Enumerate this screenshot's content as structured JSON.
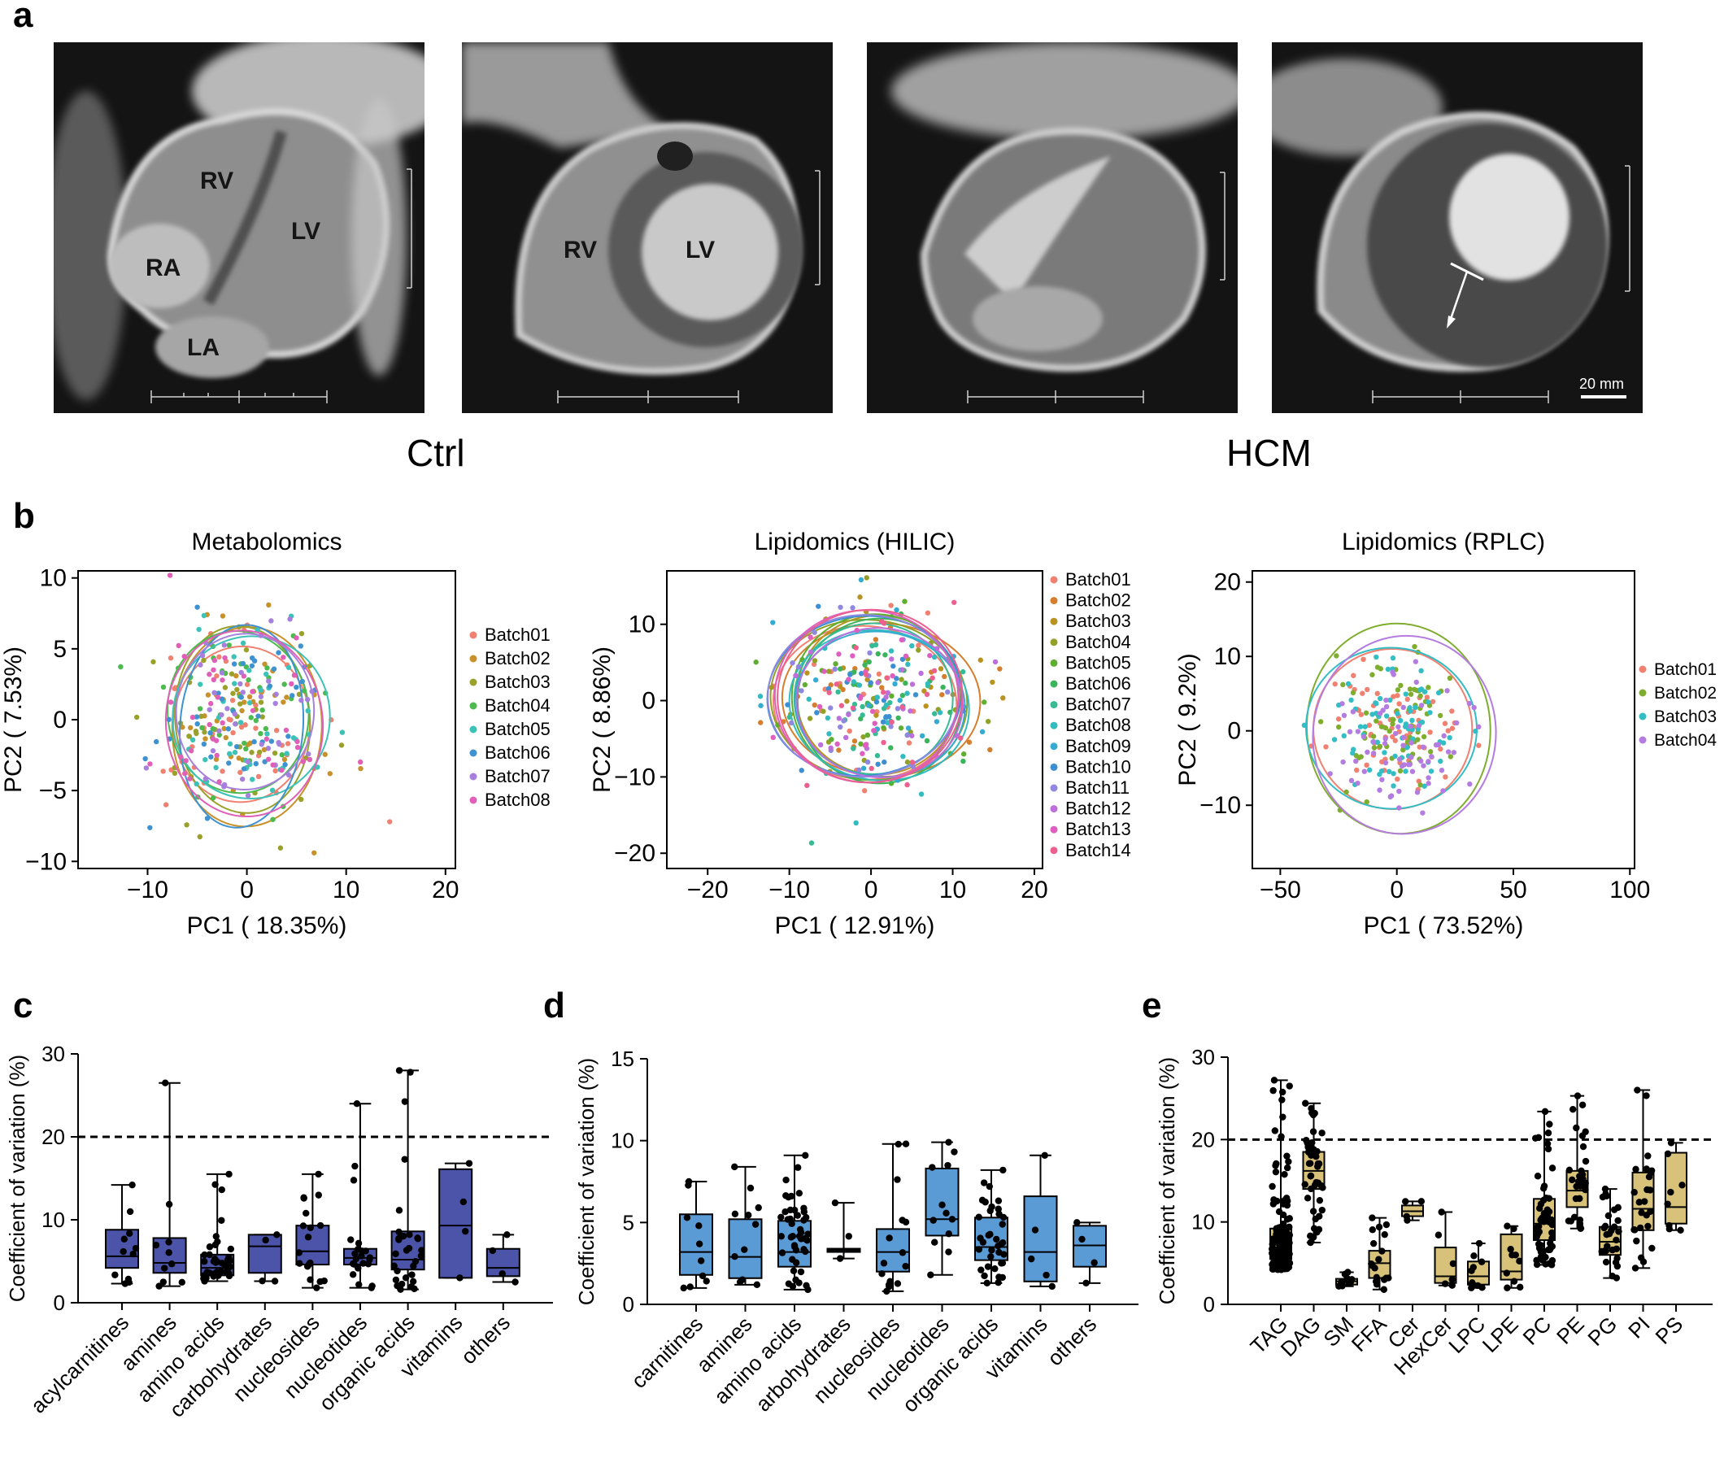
{
  "panels": {
    "a": "a",
    "b": "b",
    "c": "c",
    "d": "d",
    "e": "e"
  },
  "mri": {
    "groups": [
      "Ctrl",
      "HCM"
    ],
    "labels": {
      "rv": "RV",
      "lv": "LV",
      "ra": "RA",
      "la": "LA"
    },
    "scale_label": "20 mm"
  },
  "chart_data": [
    {
      "type": "scatter",
      "title": "Metabolomics",
      "xlabel": "PC1 ( 18.35%)",
      "ylabel": "PC2 ( 7.53%)",
      "xlim": [
        -17,
        21
      ],
      "ylim": [
        -10.5,
        10.5
      ],
      "xticks": [
        -10,
        0,
        10,
        20
      ],
      "yticks": [
        -10,
        -5,
        0,
        5,
        10
      ],
      "legend_position": "right",
      "series": [
        {
          "name": "Batch01",
          "color": "#f08070"
        },
        {
          "name": "Batch02",
          "color": "#c9912c"
        },
        {
          "name": "Batch03",
          "color": "#9aa12a"
        },
        {
          "name": "Batch04",
          "color": "#4dba4f"
        },
        {
          "name": "Batch05",
          "color": "#3dc2b8"
        },
        {
          "name": "Batch06",
          "color": "#3f92d0"
        },
        {
          "name": "Batch07",
          "color": "#a680dc"
        },
        {
          "name": "Batch08",
          "color": "#e060b8"
        }
      ]
    },
    {
      "type": "scatter",
      "title": "Lipidomics (HILIC)",
      "xlabel": "PC1 ( 12.91%)",
      "ylabel": "PC2 ( 8.86%)",
      "xlim": [
        -25,
        21
      ],
      "ylim": [
        -22,
        17
      ],
      "xticks": [
        -20,
        -10,
        0,
        10,
        20
      ],
      "yticks": [
        -20,
        -10,
        0,
        10
      ],
      "legend_position": "right",
      "series": [
        {
          "name": "Batch01",
          "color": "#f08070"
        },
        {
          "name": "Batch02",
          "color": "#d57f2e"
        },
        {
          "name": "Batch03",
          "color": "#b9921f"
        },
        {
          "name": "Batch04",
          "color": "#92a126"
        },
        {
          "name": "Batch05",
          "color": "#5fae2f"
        },
        {
          "name": "Batch06",
          "color": "#3bb55c"
        },
        {
          "name": "Batch07",
          "color": "#37bb95"
        },
        {
          "name": "Batch08",
          "color": "#33bcc0"
        },
        {
          "name": "Batch09",
          "color": "#35abd2"
        },
        {
          "name": "Batch10",
          "color": "#3b8fd2"
        },
        {
          "name": "Batch11",
          "color": "#8f87e0"
        },
        {
          "name": "Batch12",
          "color": "#bd6fdc"
        },
        {
          "name": "Batch13",
          "color": "#df5fc0"
        },
        {
          "name": "Batch14",
          "color": "#ec5f8e"
        }
      ]
    },
    {
      "type": "scatter",
      "title": "Lipidomics (RPLC)",
      "xlabel": "PC1 ( 73.52%)",
      "ylabel": "PC2 ( 9.2%)",
      "xlim": [
        -62,
        102
      ],
      "ylim": [
        -18.5,
        21.5
      ],
      "xticks": [
        -50,
        0,
        50,
        100
      ],
      "yticks": [
        -10,
        0,
        10,
        20
      ],
      "legend_position": "right",
      "series": [
        {
          "name": "Batch01",
          "color": "#f08070"
        },
        {
          "name": "Batch02",
          "color": "#7fae2e"
        },
        {
          "name": "Batch03",
          "color": "#33bdc4"
        },
        {
          "name": "Batch04",
          "color": "#b47ce0"
        }
      ]
    },
    {
      "type": "box",
      "ylabel": "Coefficient of variation (%)",
      "ylim": [
        0,
        30
      ],
      "yticks": [
        0,
        10,
        20,
        30
      ],
      "reference_line": 20,
      "color": "#4b54a8",
      "categories": [
        "acylcarnitines",
        "amines",
        "amino acids",
        "carbohydrates",
        "nucleosides",
        "nucleotides",
        "organic acids",
        "vitamins",
        "others"
      ],
      "boxes": [
        {
          "min": 2.3,
          "q1": 4.2,
          "median": 5.6,
          "q3": 8.8,
          "max": 14.2,
          "n": 11
        },
        {
          "min": 2.0,
          "q1": 3.6,
          "median": 4.8,
          "q3": 7.8,
          "max": 26.5,
          "n": 10
        },
        {
          "min": 2.6,
          "q1": 3.3,
          "median": 4.2,
          "q3": 5.8,
          "max": 15.5,
          "n": 40
        },
        {
          "min": 2.6,
          "q1": 3.6,
          "median": 6.8,
          "q3": 8.2,
          "max": 8.2,
          "n": 4
        },
        {
          "min": 1.8,
          "q1": 4.6,
          "median": 6.2,
          "q3": 9.3,
          "max": 15.5,
          "n": 18
        },
        {
          "min": 1.8,
          "q1": 4.6,
          "median": 5.4,
          "q3": 6.5,
          "max": 24.0,
          "n": 22
        },
        {
          "min": 1.6,
          "q1": 4.0,
          "median": 5.2,
          "q3": 8.6,
          "max": 28.0,
          "n": 30
        },
        {
          "min": 3.0,
          "q1": 3.0,
          "median": 9.3,
          "q3": 16.1,
          "max": 16.8,
          "n": 4
        },
        {
          "min": 2.5,
          "q1": 3.2,
          "median": 4.2,
          "q3": 6.5,
          "max": 8.2,
          "n": 4
        }
      ]
    },
    {
      "type": "box",
      "ylabel": "Coefficient of variation (%)",
      "ylim": [
        0,
        15
      ],
      "yticks": [
        0,
        5,
        10,
        15
      ],
      "color": "#5b9bd5",
      "categories": [
        "carnitines",
        "amines",
        "amino acids",
        "arbohydrates",
        "nucleosides",
        "nucleotides",
        "organic acids",
        "vitamins",
        "others"
      ],
      "boxes": [
        {
          "min": 1.0,
          "q1": 1.8,
          "median": 3.2,
          "q3": 5.5,
          "max": 7.5,
          "n": 10
        },
        {
          "min": 1.2,
          "q1": 1.6,
          "median": 2.9,
          "q3": 5.2,
          "max": 8.4,
          "n": 11
        },
        {
          "min": 0.9,
          "q1": 2.3,
          "median": 3.2,
          "q3": 5.1,
          "max": 9.1,
          "n": 45
        },
        {
          "min": 2.8,
          "q1": 3.2,
          "median": 3.3,
          "q3": 3.4,
          "max": 6.2,
          "n": 3
        },
        {
          "min": 0.8,
          "q1": 2.0,
          "median": 3.2,
          "q3": 4.6,
          "max": 9.8,
          "n": 15
        },
        {
          "min": 1.8,
          "q1": 4.2,
          "median": 5.2,
          "q3": 8.3,
          "max": 9.9,
          "n": 12
        },
        {
          "min": 1.3,
          "q1": 2.7,
          "median": 3.5,
          "q3": 5.3,
          "max": 8.2,
          "n": 36
        },
        {
          "min": 1.1,
          "q1": 1.4,
          "median": 3.2,
          "q3": 6.6,
          "max": 9.1,
          "n": 5
        },
        {
          "min": 1.3,
          "q1": 2.3,
          "median": 3.6,
          "q3": 4.8,
          "max": 5.0,
          "n": 4
        }
      ]
    },
    {
      "type": "box",
      "ylabel": "Coefficient of variation (%)",
      "ylim": [
        0,
        30
      ],
      "yticks": [
        0,
        10,
        20,
        30
      ],
      "reference_line": 20,
      "color": "#d8c27a",
      "categories": [
        "TAG",
        "DAG",
        "SM",
        "FFA",
        "Cer",
        "HexCer",
        "LPC",
        "LPE",
        "PC",
        "PE",
        "PG",
        "PI",
        "PS"
      ],
      "boxes": [
        {
          "min": 4.2,
          "q1": 5.5,
          "median": 6.8,
          "q3": 9.2,
          "max": 27.2,
          "n": 160
        },
        {
          "min": 7.5,
          "q1": 14.0,
          "median": 16.2,
          "q3": 18.5,
          "max": 24.4,
          "n": 45
        },
        {
          "min": 2.2,
          "q1": 2.4,
          "median": 2.8,
          "q3": 3.1,
          "max": 3.9,
          "n": 12
        },
        {
          "min": 1.8,
          "q1": 3.2,
          "median": 5.0,
          "q3": 6.5,
          "max": 10.5,
          "n": 18
        },
        {
          "min": 10.2,
          "q1": 10.7,
          "median": 11.3,
          "q3": 12.0,
          "max": 12.5,
          "n": 4
        },
        {
          "min": 2.3,
          "q1": 2.6,
          "median": 3.4,
          "q3": 6.9,
          "max": 11.2,
          "n": 6
        },
        {
          "min": 2.0,
          "q1": 2.4,
          "median": 3.4,
          "q3": 5.2,
          "max": 7.4,
          "n": 12
        },
        {
          "min": 2.0,
          "q1": 3.0,
          "median": 4.0,
          "q3": 8.5,
          "max": 9.5,
          "n": 10
        },
        {
          "min": 4.8,
          "q1": 7.8,
          "median": 9.8,
          "q3": 12.8,
          "max": 23.4,
          "n": 60
        },
        {
          "min": 9.2,
          "q1": 11.8,
          "median": 13.8,
          "q3": 16.2,
          "max": 25.3,
          "n": 30
        },
        {
          "min": 3.2,
          "q1": 6.0,
          "median": 7.6,
          "q3": 9.4,
          "max": 14.0,
          "n": 28
        },
        {
          "min": 4.4,
          "q1": 9.0,
          "median": 11.6,
          "q3": 16.0,
          "max": 26.0,
          "n": 25
        },
        {
          "min": 9.0,
          "q1": 9.8,
          "median": 11.8,
          "q3": 18.4,
          "max": 19.6,
          "n": 8
        }
      ]
    }
  ]
}
